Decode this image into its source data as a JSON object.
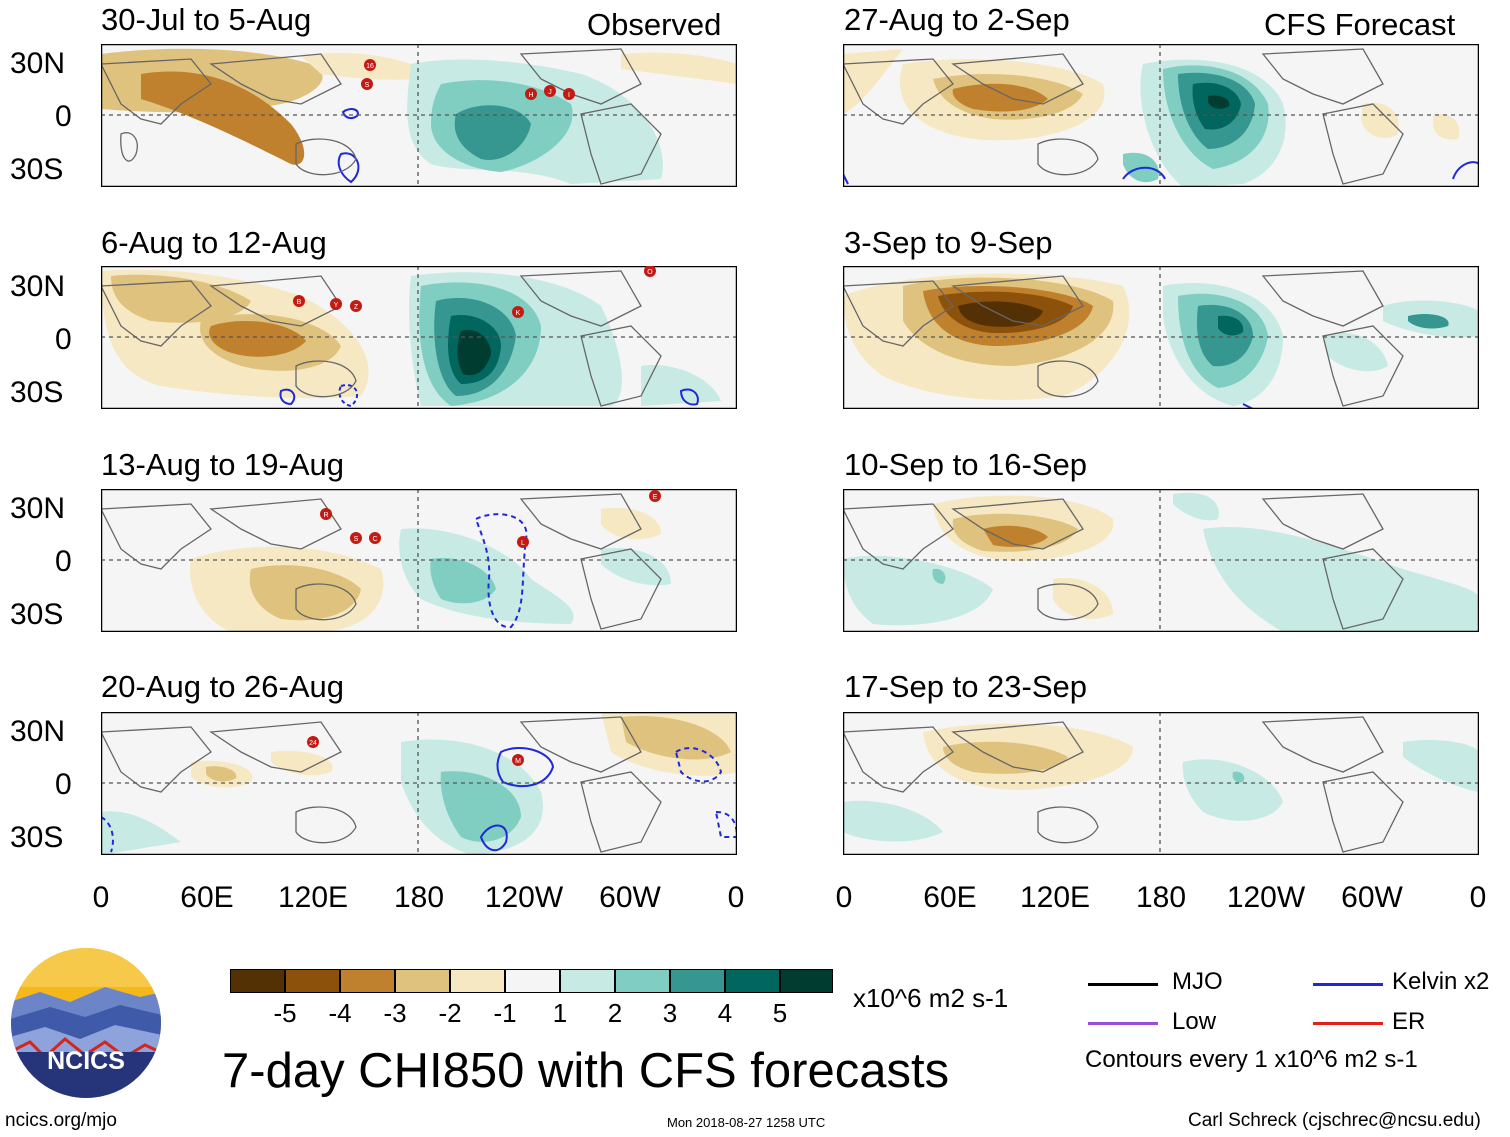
{
  "headers": {
    "left": "Observed",
    "right": "CFS Forecast"
  },
  "panels_left": [
    {
      "title": "30-Jul to 5-Aug"
    },
    {
      "title": "6-Aug to 12-Aug"
    },
    {
      "title": "13-Aug to 19-Aug"
    },
    {
      "title": "20-Aug to 26-Aug"
    }
  ],
  "panels_right": [
    {
      "title": "27-Aug to 2-Sep"
    },
    {
      "title": "3-Sep to 9-Sep"
    },
    {
      "title": "10-Sep to 16-Sep"
    },
    {
      "title": "17-Sep to 23-Sep"
    }
  ],
  "lat_labels": [
    "30N",
    "0",
    "30S"
  ],
  "lon_labels": [
    "0",
    "60E",
    "120E",
    "180",
    "120W",
    "60W",
    "0"
  ],
  "storm_markers": {
    "p1": [
      "16",
      "S",
      "H",
      "J",
      "I"
    ],
    "p2": [
      "B",
      "Y",
      "Z",
      "K",
      "O"
    ],
    "p3": [
      "R",
      "S",
      "C",
      "L",
      "E"
    ],
    "p4": [
      "24",
      "M"
    ]
  },
  "colorbar": {
    "colors": [
      "#543005",
      "#8c510a",
      "#bf812d",
      "#dfc27d",
      "#f6e8c3",
      "#f5f5f5",
      "#c7eae5",
      "#80cdc1",
      "#35978f",
      "#01665e",
      "#003c30"
    ],
    "ticks": [
      "-5",
      "-4",
      "-3",
      "-2",
      "-1",
      "1",
      "2",
      "3",
      "4",
      "5"
    ],
    "units": "x10^6 m2 s-1"
  },
  "legend": {
    "items": [
      {
        "label": "MJO",
        "color": "#000000"
      },
      {
        "label": "Kelvin x2",
        "color": "#1f2ad6"
      },
      {
        "label": "Low",
        "color": "#9b4fd9"
      },
      {
        "label": "ER",
        "color": "#e0201c"
      }
    ],
    "contour_note": "Contours every 1 x10^6 m2 s-1"
  },
  "logo_text": "NCICS",
  "main_title": "7-day CHI850 with CFS forecasts",
  "footer": {
    "left": "ncics.org/mjo",
    "center": "Mon 2018-08-27 1258 UTC",
    "right": "Carl Schreck (cjschrec@ncsu.edu)"
  }
}
